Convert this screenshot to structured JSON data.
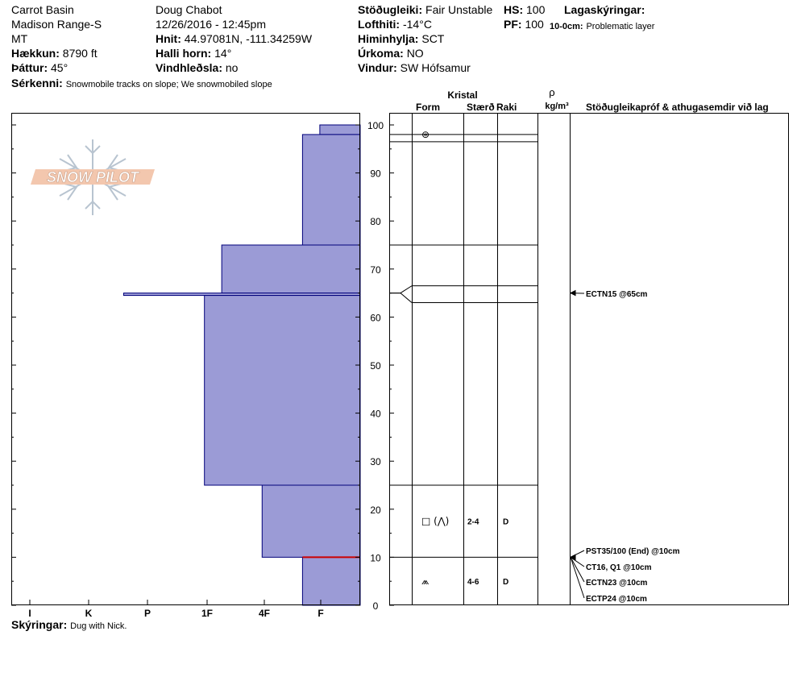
{
  "header": {
    "location": "Carrot Basin",
    "range": "Madison Range-S",
    "state": "MT",
    "elevation_label": "Hækkun:",
    "elevation": "8790 ft",
    "aspect_label": "Þáttur:",
    "aspect": "45°",
    "observer": "Doug Chabot",
    "datetime": "12/26/2016 - 12:45pm",
    "coords_label": "Hnit:",
    "coords": "44.97081N, -111.34259W",
    "slope_label": "Halli horn:",
    "slope": "14°",
    "wind_loading_label": "Vindhleðsla:",
    "wind_loading": "no",
    "stability_label": "Stöðugleiki:",
    "stability": "Fair Unstable",
    "air_temp_label": "Lofthiti:",
    "air_temp": "-14°C",
    "sky_label": "Himinhylja:",
    "sky": "SCT",
    "precip_label": "Úrkoma:",
    "precip": "NO",
    "wind_label": "Vindur:",
    "wind": "SW Hófsamur",
    "hs_label": "HS:",
    "hs": "100",
    "pf_label": "PF:",
    "pf": "100",
    "legend_label": "Lagaskýringar:",
    "legend_depth": "10-0cm:",
    "legend_text": "Problematic layer",
    "features_label": "Sérkenni:",
    "features": "Snowmobile tracks on slope; We snowmobiled slope"
  },
  "footer": {
    "notes_label": "Skýringar:",
    "notes": "Dug with Nick."
  },
  "logo": {
    "text": "SNOW PILOT"
  },
  "colors": {
    "fill": "#9b9bd6",
    "stroke": "#00007a",
    "problem": "#cc0000"
  },
  "chart_data": {
    "type": "bar",
    "orientation": "horizontal",
    "hand_hardness_ticks": [
      "I",
      "K",
      "P",
      "1F",
      "4F",
      "F"
    ],
    "ylim": [
      0,
      100
    ],
    "yticks": [
      0,
      10,
      20,
      30,
      40,
      50,
      60,
      70,
      80,
      90,
      100
    ],
    "layers": [
      {
        "top": 100,
        "bottom": 98,
        "hardness_index": 0.7
      },
      {
        "top": 98,
        "bottom": 75,
        "hardness_index": 1.0
      },
      {
        "top": 75,
        "bottom": 65,
        "hardness_index": 2.4
      },
      {
        "top": 65,
        "bottom": 64.5,
        "hardness_index": 4.1
      },
      {
        "top": 64.5,
        "bottom": 25,
        "hardness_index": 2.7
      },
      {
        "top": 25,
        "bottom": 10,
        "hardness_index": 1.7
      },
      {
        "top": 10,
        "bottom": 0,
        "hardness_index": 1.0
      }
    ],
    "problematic_layer": {
      "top": 10,
      "bottom": 0
    },
    "table_headers": {
      "crystal": "Kristal",
      "form": "Form",
      "size": "Stærð",
      "moisture": "Raki",
      "rho": "ρ",
      "density_unit": "kg/m³",
      "tests": "Stöðugleikapróf & athugasemdir við lag"
    },
    "table_boundaries": [
      100,
      98,
      96.5,
      75,
      66.5,
      63,
      25,
      10,
      0
    ],
    "crystal_rows": [
      {
        "depth": 98,
        "form": "⊛",
        "size": "",
        "moisture": ""
      },
      {
        "depth": 17.5,
        "form": "□ (⋀)",
        "size": "2-4",
        "moisture": "D"
      },
      {
        "depth": 5,
        "form": "⩕",
        "size": "4-6",
        "moisture": "D"
      }
    ],
    "tests": [
      {
        "depth": 65,
        "text": "ECTN15 @65cm"
      },
      {
        "depth": 10,
        "text": "PST35/100 (End) @10cm"
      },
      {
        "depth": 10,
        "text": "CT16, Q1 @10cm"
      },
      {
        "depth": 10,
        "text": "ECTN23 @10cm"
      },
      {
        "depth": 10,
        "text": "ECTP24 @10cm"
      }
    ]
  }
}
